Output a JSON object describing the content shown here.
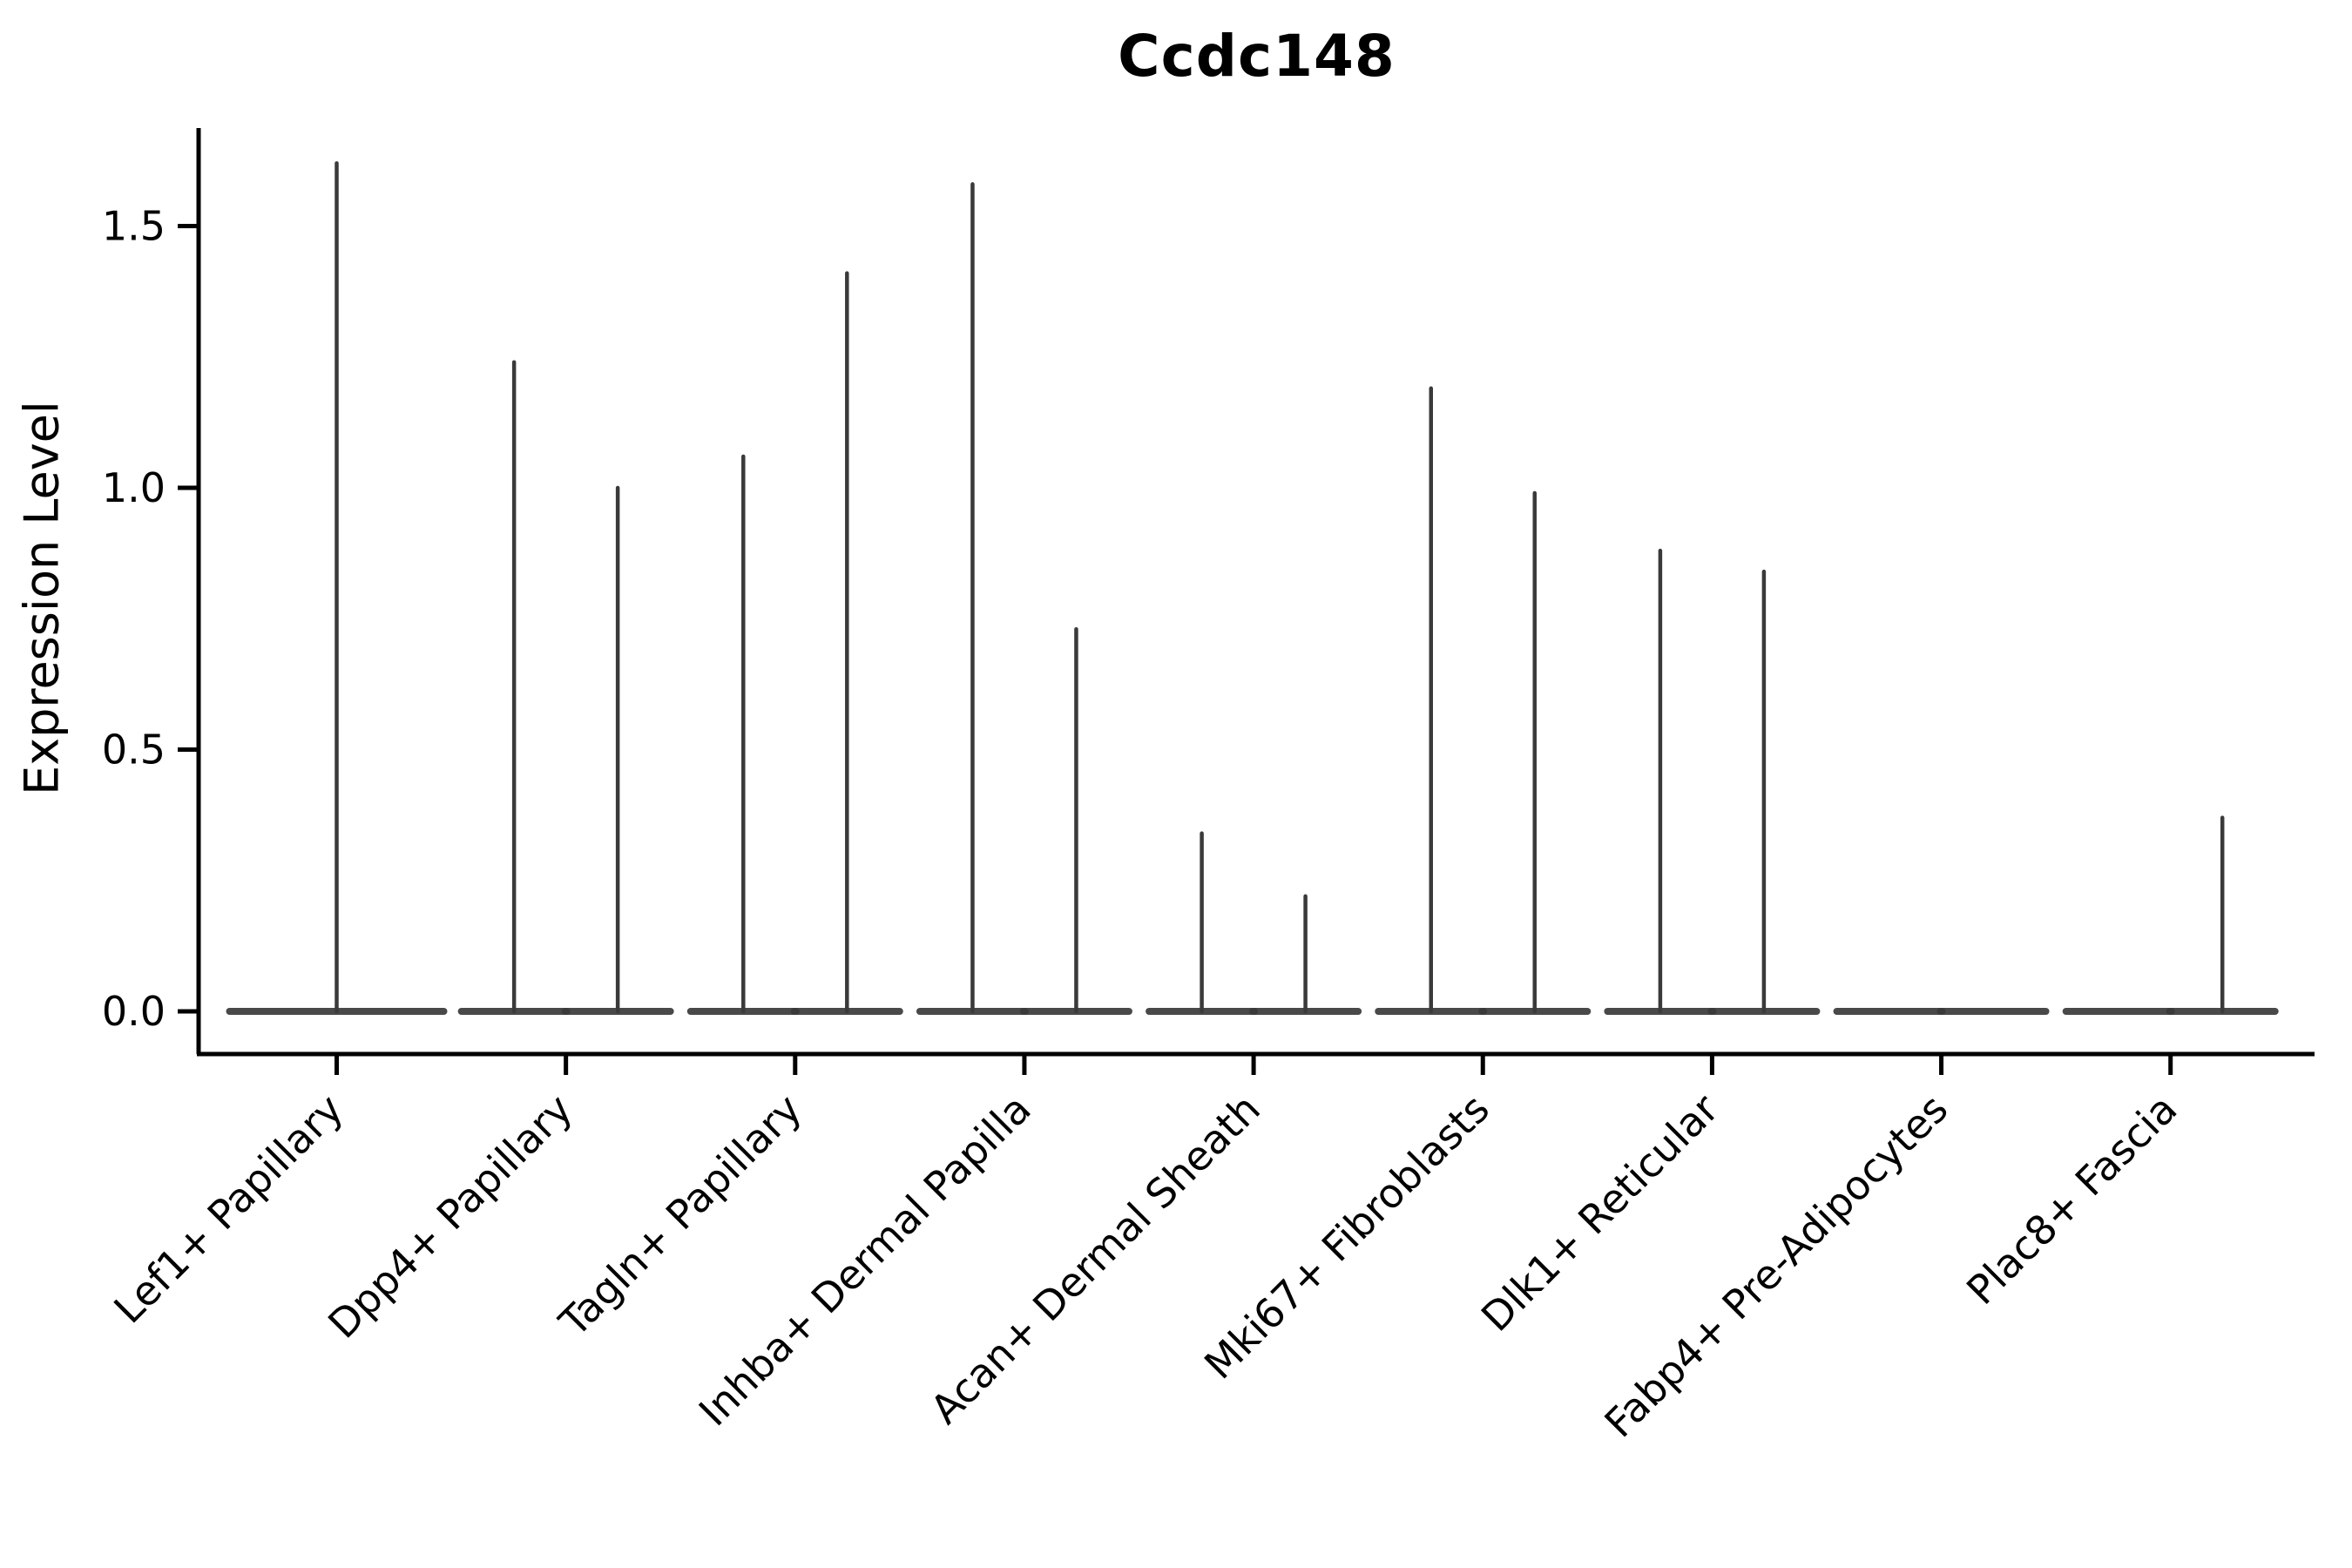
{
  "title": "Ccdc148",
  "chart_data": {
    "type": "violin",
    "title": "Ccdc148",
    "xlabel": "",
    "ylabel": "Expression Level",
    "ylim": [
      -0.08,
      1.69
    ],
    "y_ticks": [
      0.0,
      0.5,
      1.0,
      1.5
    ],
    "y_tick_labels": [
      "0.0",
      "0.5",
      "1.0",
      "1.5"
    ],
    "grid": false,
    "legend": "none",
    "x_tick_rotation_deg": 45,
    "categories": [
      "Lef1+ Papillary",
      "Dpp4+ Papillary",
      "Tagln+ Papillary",
      "Inhba+ Dermal Papilla",
      "Acan+ Dermal Sheath",
      "Mki67+ Fibroblasts",
      "Dlk1+ Reticular",
      "Fabp4+ Pre-Adipocytes",
      "Plac8+ Fascia"
    ],
    "series_note": "Each category shows narrow violin(s): a flat body at expression 0 plus a thin spike up to the maximum expression value. side=center means one full-width violin; left/right are dodged half-slot violins. max=0 means no spike (all cells near 0).",
    "violins": [
      {
        "category": "Lef1+ Papillary",
        "parts": [
          {
            "side": "center",
            "max": 1.62
          }
        ]
      },
      {
        "category": "Dpp4+ Papillary",
        "parts": [
          {
            "side": "left",
            "max": 1.24
          },
          {
            "side": "right",
            "max": 1.0
          }
        ]
      },
      {
        "category": "Tagln+ Papillary",
        "parts": [
          {
            "side": "left",
            "max": 1.06
          },
          {
            "side": "right",
            "max": 1.41
          }
        ]
      },
      {
        "category": "Inhba+ Dermal Papilla",
        "parts": [
          {
            "side": "left",
            "max": 1.58
          },
          {
            "side": "right",
            "max": 0.73
          }
        ]
      },
      {
        "category": "Acan+ Dermal Sheath",
        "parts": [
          {
            "side": "left",
            "max": 0.34
          },
          {
            "side": "right",
            "max": 0.22
          }
        ]
      },
      {
        "category": "Mki67+ Fibroblasts",
        "parts": [
          {
            "side": "left",
            "max": 1.19
          },
          {
            "side": "right",
            "max": 0.99
          }
        ]
      },
      {
        "category": "Dlk1+ Reticular",
        "parts": [
          {
            "side": "left",
            "max": 0.88
          },
          {
            "side": "right",
            "max": 0.84
          }
        ]
      },
      {
        "category": "Fabp4+ Pre-Adipocytes",
        "parts": [
          {
            "side": "left",
            "max": 0.0
          },
          {
            "side": "right",
            "max": 0.0
          }
        ]
      },
      {
        "category": "Plac8+ Fascia",
        "parts": [
          {
            "side": "left",
            "max": 0.0
          },
          {
            "side": "right",
            "max": 0.37
          }
        ]
      }
    ],
    "colors": {
      "violin_stroke": "#3a3a3a",
      "axis": "#000000",
      "text": "#000000",
      "background": "#ffffff"
    }
  }
}
